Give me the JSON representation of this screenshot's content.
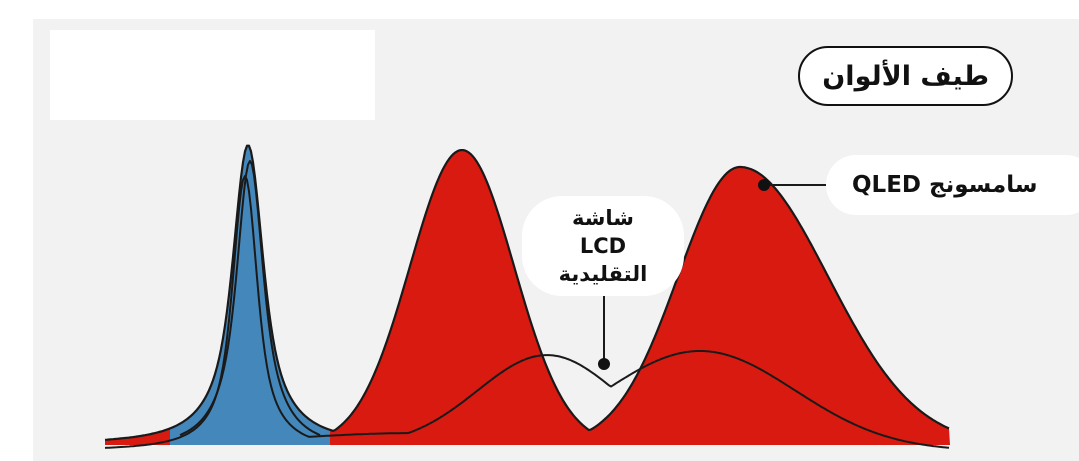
{
  "title": "طيف الألوان",
  "labels": {
    "qled": "سامسونج QLED",
    "lcd_line1": "شاشة",
    "lcd_line2": "LCD",
    "lcd_line3": "التقليدية"
  },
  "colors": {
    "background": "#f2f2f2",
    "blue": "#1e88d8",
    "green": "#1e8a2a",
    "yellow": "#ffe000",
    "orange": "#ff8a00",
    "red": "#e02010",
    "outline": "#1a1a1a"
  }
}
